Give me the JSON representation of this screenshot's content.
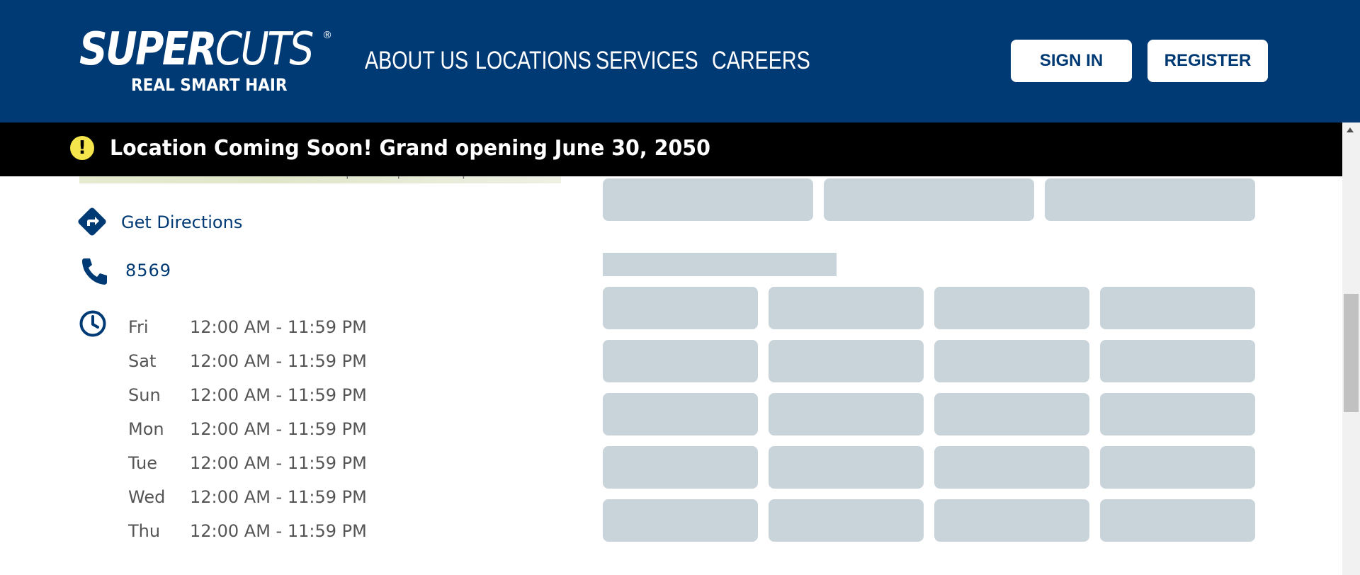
{
  "brand": {
    "logo_bold": "SUPER",
    "logo_light": "CUTS",
    "registered": "®",
    "tagline": "REAL SMART HAIR"
  },
  "nav": {
    "items": [
      "ABOUT US",
      "LOCATIONS",
      "SERVICES",
      "CAREERS"
    ]
  },
  "auth": {
    "sign_in": "SIGN IN",
    "register": "REGISTER"
  },
  "banner": {
    "icon": "exclamation-icon",
    "icon_glyph": "!",
    "text": "Location Coming Soon! Grand opening June 30, 2050"
  },
  "map": {
    "attribution": "© MapTiler © OpenStreetMap contributors"
  },
  "location": {
    "directions_label": "Get Directions",
    "phone": "8569",
    "hours": [
      {
        "day": "Fri",
        "time": "12:00 AM - 11:59 PM"
      },
      {
        "day": "Sat",
        "time": "12:00 AM - 11:59 PM"
      },
      {
        "day": "Sun",
        "time": "12:00 AM - 11:59 PM"
      },
      {
        "day": "Mon",
        "time": "12:00 AM - 11:59 PM"
      },
      {
        "day": "Tue",
        "time": "12:00 AM - 11:59 PM"
      },
      {
        "day": "Wed",
        "time": "12:00 AM - 11:59 PM"
      },
      {
        "day": "Thu",
        "time": "12:00 AM - 11:59 PM"
      }
    ]
  },
  "colors": {
    "brand_navy": "#003a75",
    "banner_black": "#000000",
    "alert_yellow": "#f4e54c",
    "skeleton": "#c8d4da"
  }
}
